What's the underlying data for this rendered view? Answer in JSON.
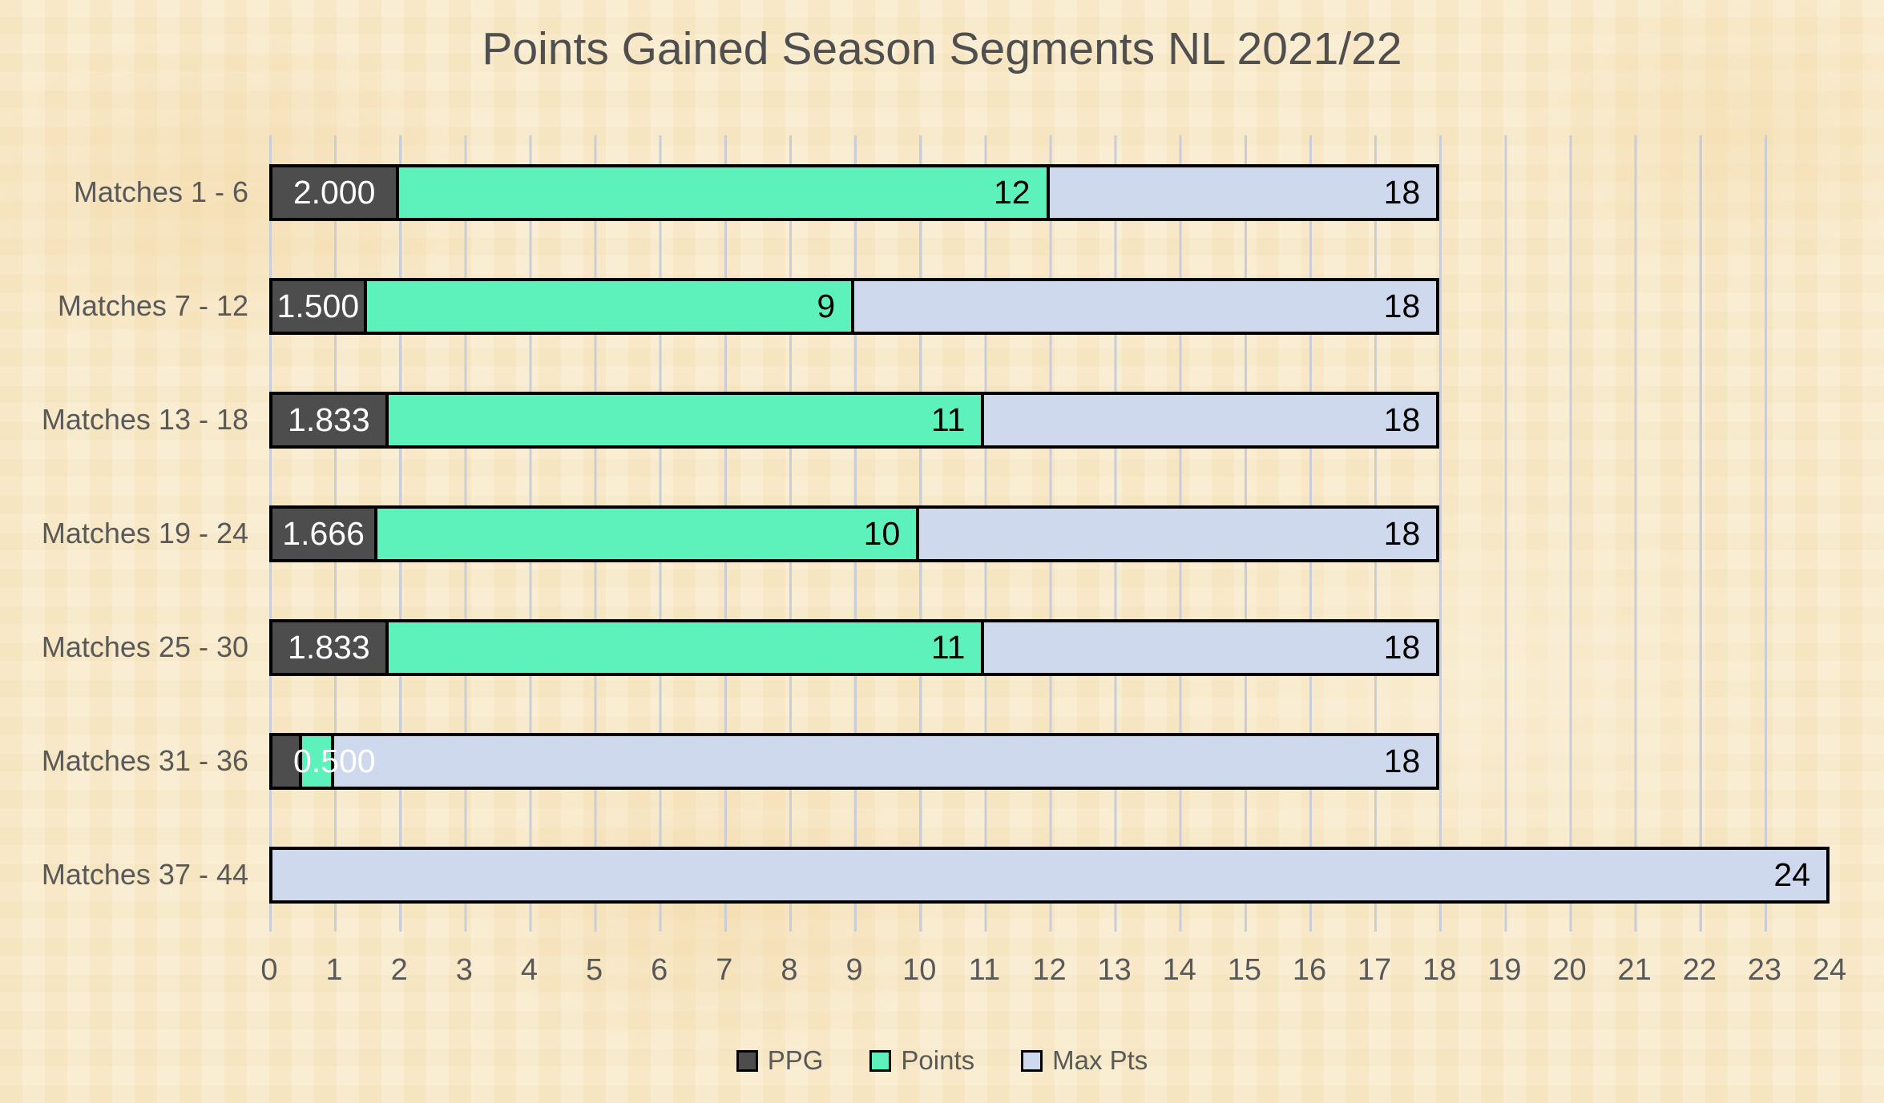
{
  "title": "Points Gained Season Segments NL 2021/22",
  "colors": {
    "ppg": "#4d4d4d",
    "points": "#5df2bb",
    "max_pts": "#cfd9ee",
    "bar_border": "#000000",
    "gridline": "#c9cdd7",
    "text": "#595959",
    "background": "#f6e7c6"
  },
  "legend": {
    "items": [
      {
        "name": "ppg",
        "label": "PPG"
      },
      {
        "name": "points",
        "label": "Points"
      },
      {
        "name": "max_pts",
        "label": "Max Pts"
      }
    ]
  },
  "chart_data": {
    "type": "bar",
    "orientation": "horizontal",
    "overlapped": true,
    "title": "Points Gained Season Segments NL 2021/22",
    "categories": [
      "Matches 1 - 6",
      "Matches 7 - 12",
      "Matches 13 - 18",
      "Matches 19 - 24",
      "Matches 25 - 30",
      "Matches 31 - 36",
      "Matches 37 - 44"
    ],
    "series": [
      {
        "name": "PPG",
        "values": [
          2.0,
          1.5,
          1.833,
          1.666,
          1.833,
          0.5,
          null
        ]
      },
      {
        "name": "Points",
        "values": [
          12,
          9,
          11,
          10,
          11,
          1,
          null
        ]
      },
      {
        "name": "Max Pts",
        "values": [
          18,
          18,
          18,
          18,
          18,
          18,
          24
        ]
      }
    ],
    "xlim": [
      0,
      24
    ],
    "xmax": 24,
    "x_ticks": [
      0,
      1,
      2,
      3,
      4,
      5,
      6,
      7,
      8,
      9,
      10,
      11,
      12,
      13,
      14,
      15,
      16,
      17,
      18,
      19,
      20,
      21,
      22,
      23,
      24
    ],
    "grid": "vertical",
    "legend_position": "bottom",
    "rows": [
      {
        "label": "Matches 1 - 6",
        "ppg": 2.0,
        "ppg_label": "2.000",
        "points": 12,
        "points_label": "12",
        "max": 18,
        "max_label": "18"
      },
      {
        "label": "Matches 7 - 12",
        "ppg": 1.5,
        "ppg_label": "1.500",
        "points": 9,
        "points_label": "9",
        "max": 18,
        "max_label": "18"
      },
      {
        "label": "Matches 13 - 18",
        "ppg": 1.833,
        "ppg_label": "1.833",
        "points": 11,
        "points_label": "11",
        "max": 18,
        "max_label": "18"
      },
      {
        "label": "Matches 19 - 24",
        "ppg": 1.666,
        "ppg_label": "1.666",
        "points": 10,
        "points_label": "10",
        "max": 18,
        "max_label": "18"
      },
      {
        "label": "Matches 25 - 30",
        "ppg": 1.833,
        "ppg_label": "1.833",
        "points": 11,
        "points_label": "11",
        "max": 18,
        "max_label": "18"
      },
      {
        "label": "Matches 31 - 36",
        "ppg": 0.5,
        "ppg_label": "0.500",
        "points": 1,
        "points_label": "",
        "max": 18,
        "max_label": "18"
      },
      {
        "label": "Matches 37 - 44",
        "ppg": null,
        "ppg_label": "",
        "points": null,
        "points_label": "",
        "max": 24,
        "max_label": "24"
      }
    ]
  }
}
